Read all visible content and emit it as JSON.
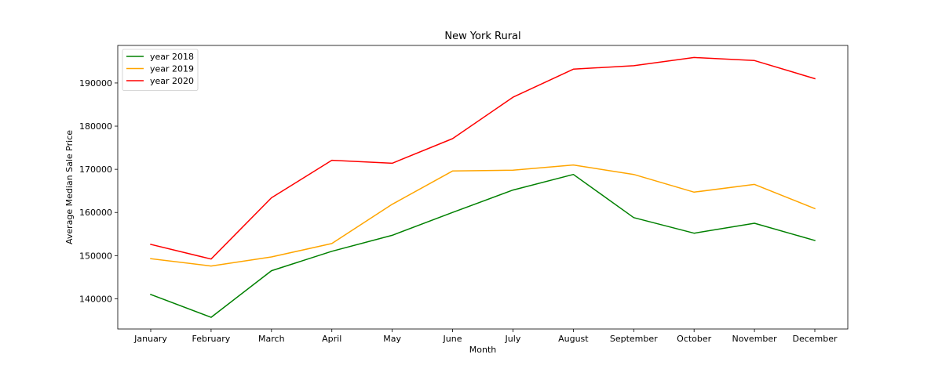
{
  "chart_data": {
    "type": "line",
    "title": "New York Rural",
    "xlabel": "Month",
    "ylabel": "Average Median Sale Price",
    "categories": [
      "January",
      "February",
      "March",
      "April",
      "May",
      "June",
      "July",
      "August",
      "September",
      "October",
      "November",
      "December"
    ],
    "ylim": [
      133000,
      198700
    ],
    "yticks": [
      140000,
      150000,
      160000,
      170000,
      180000,
      190000
    ],
    "grid": false,
    "legend_position": "top-left",
    "series": [
      {
        "name": "year 2018",
        "color": "#008000",
        "values": [
          141000,
          135700,
          146500,
          151000,
          154700,
          160000,
          165200,
          168800,
          158800,
          155200,
          157500,
          153500
        ]
      },
      {
        "name": "year 2019",
        "color": "#ffa500",
        "values": [
          149300,
          147600,
          149700,
          152800,
          161900,
          169600,
          169800,
          171000,
          168800,
          164700,
          166500,
          160900
        ]
      },
      {
        "name": "year 2020",
        "color": "#ff0000",
        "values": [
          152600,
          149200,
          163400,
          172100,
          171400,
          177100,
          186700,
          193200,
          194000,
          195900,
          195200,
          191000
        ]
      }
    ]
  }
}
